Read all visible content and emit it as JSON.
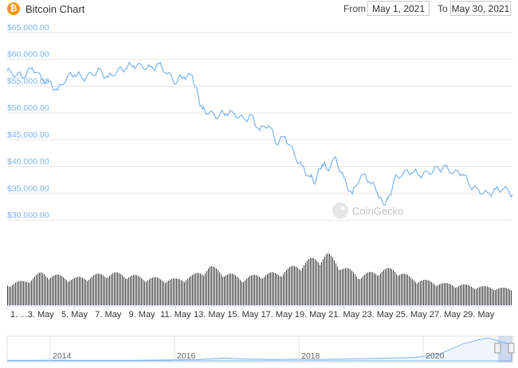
{
  "header": {
    "logo_glyph": "₿",
    "title": "Bitcoin Chart",
    "from_label": "From",
    "from_value": "May 1, 2021",
    "to_label": "To",
    "to_value": "May 30, 2021"
  },
  "watermark": "CoinGecko",
  "chart_data": {
    "type": "line",
    "title": "Bitcoin Chart",
    "xlabel": "",
    "ylabel": "",
    "ylim": [
      30000,
      65000
    ],
    "yticks": [
      "$65,000.00",
      "$60,000.00",
      "$55,000.00",
      "$50,000.00",
      "$45,000.00",
      "$40,000.00",
      "$35,000.00",
      "$30,000.00"
    ],
    "ytick_values": [
      65000,
      60000,
      55000,
      50000,
      45000,
      40000,
      35000,
      30000
    ],
    "xlim": [
      1,
      31
    ],
    "xticks": [
      "1. ...",
      "3. May",
      "5. May",
      "7. May",
      "9. May",
      "11. May",
      "13. May",
      "15. May",
      "17. May",
      "19. May",
      "21. May",
      "23. May",
      "25. May",
      "27. May",
      "29. May"
    ],
    "xtick_values": [
      1,
      3,
      5,
      7,
      9,
      11,
      13,
      15,
      17,
      19,
      21,
      23,
      25,
      27,
      29
    ],
    "grid": true,
    "legend": "none",
    "line_color": "#7cb5ec",
    "series": [
      {
        "x": [
          1,
          1.5,
          2,
          2.5,
          3,
          3.5,
          4,
          4.5,
          5,
          5.5,
          6,
          6.5,
          7,
          7.5,
          8,
          8.5,
          9,
          9.5,
          10,
          10.5,
          11,
          11.5,
          12,
          12.3,
          12.6,
          13,
          13.5,
          14,
          14.5,
          15,
          15.5,
          16,
          16.5,
          17,
          17.5,
          18,
          18.5,
          19,
          19.3,
          19.7,
          20,
          20.5,
          21,
          21.5,
          22,
          22.5,
          23,
          23.3,
          23.6,
          24,
          24.5,
          25,
          25.5,
          26,
          26.5,
          27,
          27.5,
          28,
          28.5,
          29,
          29.5,
          30,
          30.5,
          31
        ],
        "values": [
          57800,
          57200,
          57000,
          58500,
          56500,
          55500,
          54200,
          56500,
          57500,
          56500,
          57200,
          57800,
          56500,
          57800,
          58500,
          59000,
          58700,
          58200,
          59000,
          57500,
          55800,
          57000,
          56800,
          53500,
          50500,
          50000,
          49500,
          50200,
          49800,
          48800,
          49300,
          46800,
          48000,
          44500,
          45600,
          42500,
          39800,
          38000,
          37200,
          40800,
          39500,
          41500,
          37500,
          34800,
          38500,
          37600,
          35200,
          33000,
          33500,
          37500,
          38800,
          39200,
          38500,
          38800,
          39500,
          39800,
          38900,
          39000,
          36500,
          35500,
          34800,
          35500,
          36000,
          34800
        ]
      }
    ],
    "volume": {
      "note": "relative trading volume (0-1) per day",
      "x": [
        1,
        2,
        3,
        4,
        5,
        6,
        7,
        8,
        9,
        10,
        11,
        12,
        13,
        14,
        15,
        16,
        17,
        18,
        19,
        20,
        21,
        22,
        23,
        24,
        25,
        26,
        27,
        28,
        29,
        30,
        31
      ],
      "values": [
        0.4,
        0.45,
        0.6,
        0.55,
        0.5,
        0.55,
        0.6,
        0.58,
        0.52,
        0.5,
        0.48,
        0.55,
        0.72,
        0.6,
        0.5,
        0.58,
        0.6,
        0.72,
        0.85,
        0.95,
        0.7,
        0.55,
        0.65,
        0.68,
        0.5,
        0.45,
        0.4,
        0.38,
        0.35,
        0.33,
        0.3
      ]
    },
    "navigator": {
      "xticks": [
        "2014",
        "2016",
        "2018",
        "2020"
      ],
      "note": "historical price overview 2013-2021 (relative 0-1)",
      "values": [
        0.02,
        0.02,
        0.03,
        0.02,
        0.02,
        0.02,
        0.03,
        0.04,
        0.06,
        0.12,
        0.08,
        0.06,
        0.07,
        0.06,
        0.08,
        0.1,
        0.12,
        0.15,
        0.3,
        0.75,
        1.0,
        0.7
      ]
    }
  }
}
